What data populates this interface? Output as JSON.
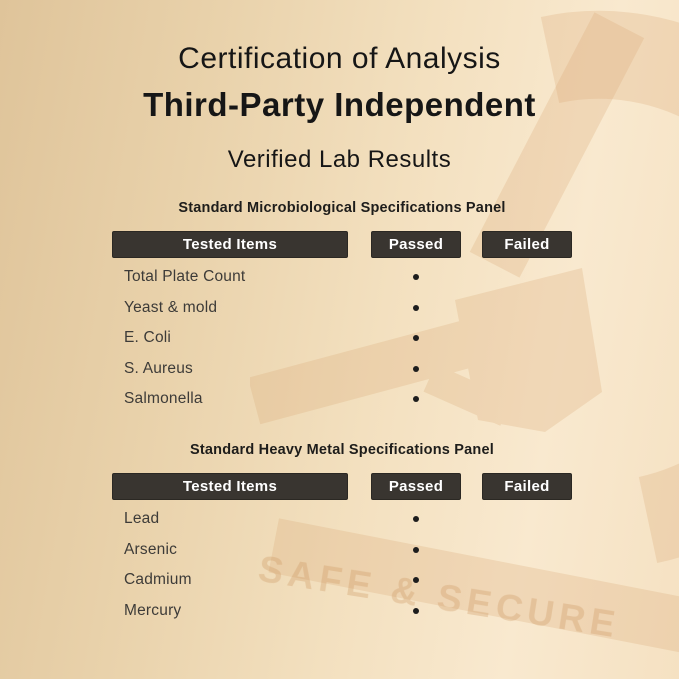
{
  "header": {
    "title_line1": "Certification of Analysis",
    "title_line2": "Third-Party Independent",
    "title_line3": "Verified Lab Results"
  },
  "tables": [
    {
      "title": "Standard Microbiological Specifications Panel",
      "columns": [
        "Tested Items",
        "Passed",
        "Failed"
      ],
      "rows": [
        {
          "item": "Total Plate Count",
          "passed": true,
          "failed": false
        },
        {
          "item": "Yeast & mold",
          "passed": true,
          "failed": false
        },
        {
          "item": "E. Coli",
          "passed": true,
          "failed": false
        },
        {
          "item": "S. Aureus",
          "passed": true,
          "failed": false
        },
        {
          "item": "Salmonella",
          "passed": true,
          "failed": false
        }
      ]
    },
    {
      "title": "Standard Heavy Metal Specifications Panel",
      "columns": [
        "Tested Items",
        "Passed",
        "Failed"
      ],
      "rows": [
        {
          "item": "Lead",
          "passed": true,
          "failed": false
        },
        {
          "item": "Arsenic",
          "passed": true,
          "failed": false
        },
        {
          "item": "Cadmium",
          "passed": true,
          "failed": false
        },
        {
          "item": "Mercury",
          "passed": true,
          "failed": false
        }
      ]
    }
  ],
  "watermark": {
    "text": "SAFE & SECURE",
    "icon": "microscope-watermark"
  },
  "bullet_glyph": "•",
  "colors": {
    "background_dark": "#dfc49a",
    "background_light": "#f9e9cf",
    "header_box": "#393530",
    "header_box_text": "#ffffff",
    "body_text": "#3d3b38",
    "heading_text": "#161616",
    "watermark_tint": "#d8a873",
    "bullet": "#1d1d1d"
  }
}
